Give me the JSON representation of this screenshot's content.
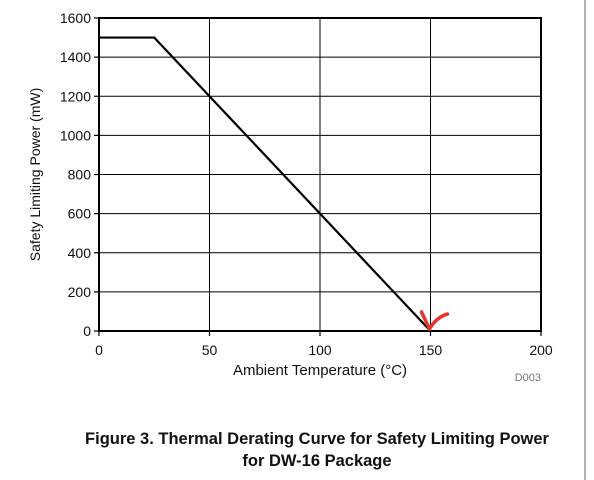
{
  "chart_data": {
    "type": "line",
    "xlabel": "Ambient Temperature (°C)",
    "ylabel": "Safety Limiting Power (mW)",
    "xlim": [
      0,
      200
    ],
    "ylim": [
      0,
      1600
    ],
    "x_ticks": [
      "0",
      "50",
      "100",
      "150",
      "200"
    ],
    "y_ticks": [
      "0",
      "200",
      "400",
      "600",
      "800",
      "1000",
      "1200",
      "1400",
      "1600"
    ],
    "grid": true,
    "series": [
      {
        "x": [
          0,
          25,
          150
        ],
        "y": [
          1500,
          1500,
          0
        ]
      }
    ],
    "annotation": {
      "x": 150,
      "y": 0,
      "shape": "check-mark",
      "color": "#e8352b"
    },
    "figure_id": "D003"
  },
  "caption": {
    "line1": "Figure 3. Thermal Derating Curve for Safety Limiting Power",
    "line2": "for DW-16 Package"
  }
}
